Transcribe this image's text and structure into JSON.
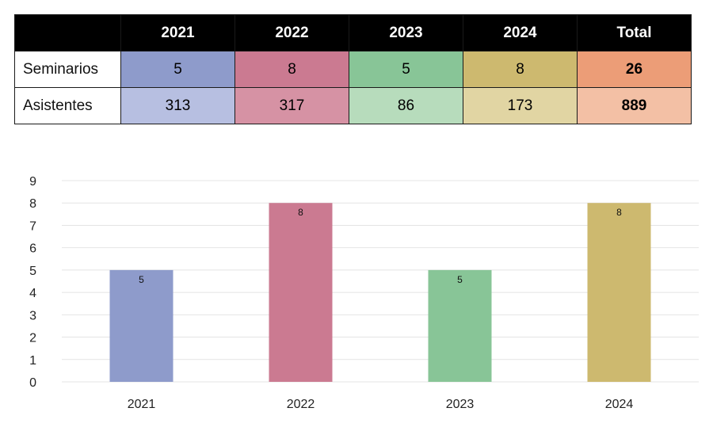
{
  "table": {
    "header": [
      "",
      "2021",
      "2022",
      "2023",
      "2024",
      "Total"
    ],
    "rows": [
      {
        "label": "Seminarios",
        "values": [
          "5",
          "8",
          "5",
          "8",
          "26"
        ]
      },
      {
        "label": "Asistentes",
        "values": [
          "313",
          "317",
          "86",
          "173",
          "889"
        ]
      }
    ],
    "colors": {
      "row1": [
        "#8e9bcb",
        "#cb7a91",
        "#88c597",
        "#cdb96f",
        "#ec9d77"
      ],
      "row2": [
        "#b7bfe1",
        "#d692a4",
        "#b7dcbc",
        "#e1d5a3",
        "#f3c0a5"
      ]
    }
  },
  "chart_data": {
    "type": "bar",
    "categories": [
      "2021",
      "2022",
      "2023",
      "2024"
    ],
    "values": [
      5,
      8,
      5,
      8
    ],
    "data_labels": [
      "5",
      "8",
      "5",
      "8"
    ],
    "colors": [
      "#8e9bcb",
      "#cb7a91",
      "#88c597",
      "#cdb96f"
    ],
    "ylim": [
      0,
      9
    ],
    "yticks": [
      "0",
      "1",
      "2",
      "3",
      "4",
      "5",
      "6",
      "7",
      "8",
      "9"
    ],
    "grid": true,
    "title": "",
    "xlabel": "",
    "ylabel": ""
  }
}
